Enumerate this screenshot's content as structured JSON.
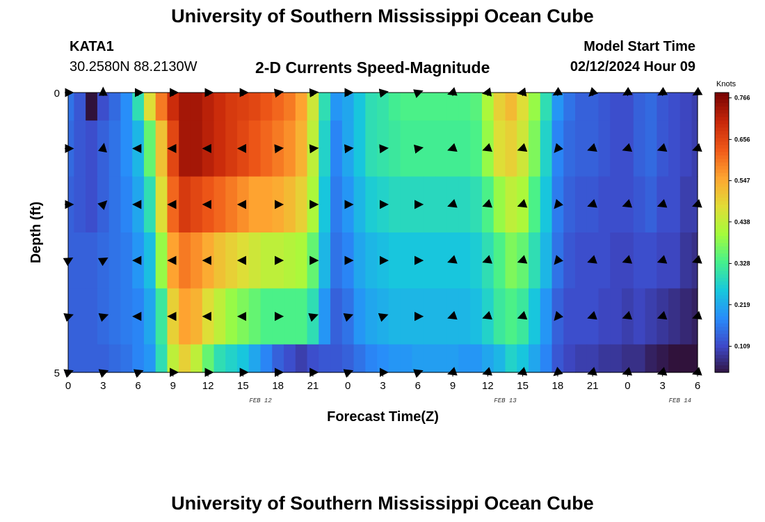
{
  "header": {
    "title": "University of Southern Mississippi Ocean Cube",
    "station": "KATA1",
    "coords": "30.2580N  88.2130W",
    "subtitle": "2-D Currents Speed-Magnitude",
    "model_start_label": "Model Start Time",
    "model_start_value": "02/12/2024 Hour 09"
  },
  "footer": {
    "title": "University of Southern Mississippi Ocean Cube"
  },
  "chart_data": {
    "type": "heatmap",
    "title": "2-D Currents Speed-Magnitude",
    "xlabel": "Forecast Time(Z)",
    "ylabel": "Depth (ft)",
    "x_tick_labels": [
      "0",
      "3",
      "6",
      "9",
      "12",
      "15",
      "18",
      "21",
      "0",
      "3",
      "6",
      "9",
      "12",
      "15",
      "18",
      "21",
      "0",
      "3",
      "6"
    ],
    "date_labels": [
      {
        "label": "FEB 12",
        "at_tick": 5.5
      },
      {
        "label": "FEB 13",
        "at_tick": 12.5
      },
      {
        "label": "FEB 14",
        "at_tick": 17.5
      }
    ],
    "y_tick_labels": [
      "0",
      "5"
    ],
    "depth_range_ft": [
      0,
      5
    ],
    "colorbar": {
      "unit": "Knots",
      "min": 0.04,
      "max": 0.78,
      "tick_labels": [
        "0.766",
        "0.656",
        "0.547",
        "0.438",
        "0.328",
        "0.219",
        "0.109"
      ],
      "tick_values": [
        0.766,
        0.656,
        0.547,
        0.438,
        0.328,
        0.219,
        0.109
      ]
    },
    "hours": [
      0,
      1,
      2,
      3,
      4,
      5,
      6,
      7,
      8,
      9,
      10,
      11,
      12,
      13,
      14,
      15,
      16,
      17,
      18,
      19,
      20,
      21,
      22,
      23,
      24,
      25,
      26,
      27,
      28,
      29,
      30,
      31,
      32,
      33,
      34,
      35,
      36,
      37,
      38,
      39,
      40,
      41,
      42,
      43,
      44,
      45,
      46,
      47,
      48,
      49,
      50,
      51,
      52,
      53,
      54
    ],
    "speed_profile_knots": [
      0.14,
      0.12,
      0.1,
      0.11,
      0.13,
      0.16,
      0.22,
      0.3,
      0.42,
      0.58,
      0.66,
      0.72,
      0.74,
      0.74,
      0.7,
      0.68,
      0.66,
      0.64,
      0.62,
      0.58,
      0.55,
      0.45,
      0.3,
      0.2,
      0.15,
      0.2,
      0.26,
      0.29,
      0.31,
      0.32,
      0.33,
      0.34,
      0.34,
      0.34,
      0.33,
      0.32,
      0.34,
      0.38,
      0.42,
      0.45,
      0.42,
      0.35,
      0.25,
      0.18,
      0.15,
      0.14,
      0.13,
      0.12,
      0.12,
      0.13,
      0.14,
      0.13,
      0.12,
      0.1,
      0.08
    ],
    "depth_levels": [
      {
        "layer": 1,
        "hours": [
          0,
          1,
          2,
          3,
          4,
          5,
          6,
          7,
          8,
          9,
          10,
          11,
          12,
          13,
          14,
          15,
          16,
          17,
          18,
          19,
          20,
          21,
          22,
          23,
          24,
          25,
          26,
          27,
          28,
          29,
          30,
          31,
          32,
          33,
          34,
          35,
          36,
          37,
          38,
          39,
          40,
          41,
          42,
          43,
          44,
          45,
          46,
          47,
          48,
          49,
          50,
          51,
          52,
          53,
          54
        ],
        "speed_knots": [
          0.16,
          0.13,
          0.04,
          0.12,
          0.15,
          0.19,
          0.3,
          0.48,
          0.6,
          0.7,
          0.74,
          0.74,
          0.72,
          0.7,
          0.68,
          0.67,
          0.66,
          0.64,
          0.62,
          0.6,
          0.56,
          0.46,
          0.3,
          0.2,
          0.22,
          0.26,
          0.3,
          0.31,
          0.33,
          0.34,
          0.34,
          0.34,
          0.34,
          0.34,
          0.34,
          0.35,
          0.42,
          0.5,
          0.53,
          0.48,
          0.4,
          0.3,
          0.2,
          0.16,
          0.14,
          0.14,
          0.13,
          0.12,
          0.12,
          0.14,
          0.15,
          0.13,
          0.12,
          0.11,
          0.1
        ]
      },
      {
        "layer": 2,
        "hours": [
          0,
          1,
          2,
          3,
          4,
          5,
          6,
          7,
          8,
          9,
          10,
          11,
          12,
          13,
          14,
          15,
          16,
          17,
          18,
          19,
          20,
          21,
          22,
          23,
          24,
          25,
          26,
          27,
          28,
          29,
          30,
          31,
          32,
          33,
          34,
          35,
          36,
          37,
          38,
          39,
          40,
          41,
          42,
          43,
          44,
          45,
          46,
          47,
          48,
          49,
          50,
          51,
          52,
          53,
          54
        ],
        "speed_knots": [
          0.15,
          0.13,
          0.12,
          0.14,
          0.16,
          0.19,
          0.24,
          0.36,
          0.52,
          0.66,
          0.74,
          0.74,
          0.72,
          0.7,
          0.68,
          0.66,
          0.64,
          0.62,
          0.6,
          0.58,
          0.54,
          0.44,
          0.28,
          0.18,
          0.22,
          0.26,
          0.3,
          0.31,
          0.32,
          0.33,
          0.33,
          0.33,
          0.33,
          0.33,
          0.33,
          0.34,
          0.4,
          0.48,
          0.5,
          0.46,
          0.38,
          0.28,
          0.18,
          0.15,
          0.14,
          0.14,
          0.13,
          0.12,
          0.12,
          0.14,
          0.15,
          0.13,
          0.12,
          0.11,
          0.1
        ]
      },
      {
        "layer": 3,
        "hours": [
          0,
          1,
          2,
          3,
          4,
          5,
          6,
          7,
          8,
          9,
          10,
          11,
          12,
          13,
          14,
          15,
          16,
          17,
          18,
          19,
          20,
          21,
          22,
          23,
          24,
          25,
          26,
          27,
          28,
          29,
          30,
          31,
          32,
          33,
          34,
          35,
          36,
          37,
          38,
          39,
          40,
          41,
          42,
          43,
          44,
          45,
          46,
          47,
          48,
          49,
          50,
          51,
          52,
          53,
          54
        ],
        "speed_knots": [
          0.14,
          0.13,
          0.12,
          0.14,
          0.16,
          0.18,
          0.22,
          0.3,
          0.48,
          0.62,
          0.68,
          0.66,
          0.64,
          0.62,
          0.6,
          0.58,
          0.56,
          0.56,
          0.55,
          0.53,
          0.5,
          0.42,
          0.26,
          0.17,
          0.2,
          0.24,
          0.27,
          0.28,
          0.29,
          0.29,
          0.29,
          0.29,
          0.29,
          0.29,
          0.29,
          0.3,
          0.34,
          0.4,
          0.44,
          0.42,
          0.34,
          0.26,
          0.17,
          0.14,
          0.13,
          0.13,
          0.12,
          0.12,
          0.12,
          0.13,
          0.14,
          0.12,
          0.12,
          0.1,
          0.1
        ]
      },
      {
        "layer": 4,
        "hours": [
          0,
          1,
          2,
          3,
          4,
          5,
          6,
          7,
          8,
          9,
          10,
          11,
          12,
          13,
          14,
          15,
          16,
          17,
          18,
          19,
          20,
          21,
          22,
          23,
          24,
          25,
          26,
          27,
          28,
          29,
          30,
          31,
          32,
          33,
          34,
          35,
          36,
          37,
          38,
          39,
          40,
          41,
          42,
          43,
          44,
          45,
          46,
          47,
          48,
          49,
          50,
          51,
          52,
          53,
          54
        ],
        "speed_knots": [
          0.14,
          0.14,
          0.14,
          0.15,
          0.16,
          0.17,
          0.2,
          0.25,
          0.4,
          0.56,
          0.6,
          0.58,
          0.55,
          0.52,
          0.5,
          0.48,
          0.46,
          0.44,
          0.44,
          0.43,
          0.42,
          0.36,
          0.24,
          0.16,
          0.18,
          0.22,
          0.24,
          0.25,
          0.26,
          0.26,
          0.26,
          0.26,
          0.26,
          0.26,
          0.26,
          0.27,
          0.3,
          0.34,
          0.38,
          0.36,
          0.3,
          0.24,
          0.16,
          0.13,
          0.12,
          0.12,
          0.12,
          0.11,
          0.11,
          0.12,
          0.12,
          0.11,
          0.11,
          0.09,
          0.08
        ]
      },
      {
        "layer": 5,
        "hours": [
          0,
          1,
          2,
          3,
          4,
          5,
          6,
          7,
          8,
          9,
          10,
          11,
          12,
          13,
          14,
          15,
          16,
          17,
          18,
          19,
          20,
          21,
          22,
          23,
          24,
          25,
          26,
          27,
          28,
          29,
          30,
          31,
          32,
          33,
          34,
          35,
          36,
          37,
          38,
          39,
          40,
          41,
          42,
          43,
          44,
          45,
          46,
          47,
          48,
          49,
          50,
          51,
          52,
          53,
          54
        ],
        "speed_knots": [
          0.14,
          0.14,
          0.14,
          0.15,
          0.16,
          0.17,
          0.18,
          0.22,
          0.32,
          0.5,
          0.56,
          0.54,
          0.48,
          0.44,
          0.4,
          0.38,
          0.36,
          0.34,
          0.34,
          0.34,
          0.34,
          0.3,
          0.2,
          0.14,
          0.16,
          0.2,
          0.22,
          0.23,
          0.24,
          0.24,
          0.24,
          0.24,
          0.24,
          0.24,
          0.24,
          0.25,
          0.28,
          0.32,
          0.34,
          0.32,
          0.26,
          0.2,
          0.14,
          0.12,
          0.12,
          0.12,
          0.11,
          0.11,
          0.1,
          0.11,
          0.1,
          0.09,
          0.08,
          0.07,
          0.06
        ]
      },
      {
        "layer": 6,
        "hours": [
          0,
          1,
          2,
          3,
          4,
          5,
          6,
          7,
          8,
          9,
          10,
          11,
          12,
          13,
          14,
          15,
          16,
          17,
          18,
          19,
          20,
          21,
          22,
          23,
          24,
          25,
          26,
          27,
          28,
          29,
          30,
          31,
          32,
          33,
          34,
          35,
          36,
          37,
          38,
          39,
          40,
          41,
          42,
          43,
          44,
          45,
          46,
          47,
          48,
          49,
          50,
          51,
          52,
          53,
          54
        ],
        "speed_knots": [
          0.14,
          0.14,
          0.14,
          0.14,
          0.15,
          0.16,
          0.18,
          0.2,
          0.3,
          0.44,
          0.5,
          0.44,
          0.36,
          0.3,
          0.28,
          0.26,
          0.22,
          0.18,
          0.14,
          0.12,
          0.1,
          0.12,
          0.13,
          0.13,
          0.14,
          0.16,
          0.18,
          0.19,
          0.2,
          0.2,
          0.21,
          0.21,
          0.21,
          0.21,
          0.2,
          0.2,
          0.22,
          0.24,
          0.28,
          0.26,
          0.22,
          0.18,
          0.13,
          0.11,
          0.1,
          0.1,
          0.09,
          0.09,
          0.08,
          0.08,
          0.06,
          0.05,
          0.04,
          0.04,
          0.04
        ]
      }
    ],
    "vector_columns_hours": [
      0,
      3,
      6,
      9,
      12,
      15,
      18,
      21,
      24,
      27,
      30,
      33,
      36,
      39,
      42,
      45,
      48,
      51,
      54
    ],
    "vector_angles_deg": [
      [
        0,
        90,
        0,
        0,
        0,
        0,
        10,
        5,
        0,
        10,
        20,
        200,
        190,
        190,
        210,
        225,
        210,
        210,
        210
      ],
      [
        0,
        80,
        180,
        180,
        180,
        180,
        5,
        5,
        5,
        5,
        10,
        200,
        200,
        200,
        230,
        200,
        200,
        200,
        200
      ],
      [
        0,
        45,
        180,
        180,
        180,
        180,
        0,
        0,
        0,
        0,
        0,
        200,
        200,
        200,
        230,
        200,
        200,
        200,
        200
      ],
      [
        30,
        30,
        180,
        180,
        180,
        180,
        0,
        0,
        0,
        0,
        0,
        200,
        200,
        200,
        230,
        200,
        200,
        200,
        200
      ],
      [
        20,
        20,
        180,
        180,
        180,
        180,
        0,
        20,
        20,
        20,
        0,
        200,
        200,
        200,
        230,
        200,
        200,
        200,
        200
      ],
      [
        20,
        20,
        20,
        0,
        0,
        0,
        0,
        0,
        20,
        0,
        20,
        200,
        200,
        200,
        220,
        200,
        200,
        200,
        200
      ]
    ]
  }
}
